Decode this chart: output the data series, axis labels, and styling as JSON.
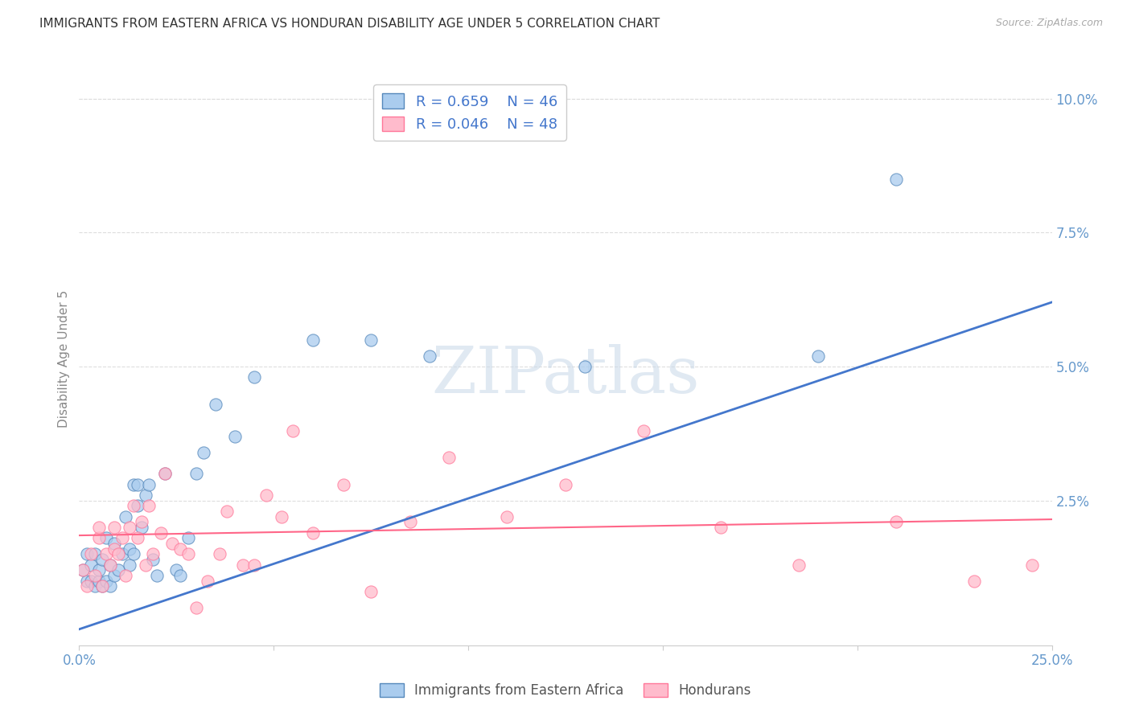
{
  "title": "IMMIGRANTS FROM EASTERN AFRICA VS HONDURAN DISABILITY AGE UNDER 5 CORRELATION CHART",
  "source": "Source: ZipAtlas.com",
  "ylabel": "Disability Age Under 5",
  "xlim": [
    0.0,
    0.25
  ],
  "ylim": [
    -0.002,
    0.105
  ],
  "plot_ylim": [
    0.0,
    0.1
  ],
  "yticks": [
    0.025,
    0.05,
    0.075,
    0.1
  ],
  "ytick_labels": [
    "2.5%",
    "5.0%",
    "7.5%",
    "10.0%"
  ],
  "xticks": [
    0.0,
    0.05,
    0.1,
    0.15,
    0.2,
    0.25
  ],
  "xtick_labels": [
    "0.0%",
    "",
    "",
    "",
    "",
    "25.0%"
  ],
  "blue_R": 0.659,
  "blue_N": 46,
  "pink_R": 0.046,
  "pink_N": 48,
  "blue_scatter_color_face": "#AACCEE",
  "blue_scatter_color_edge": "#5588BB",
  "pink_scatter_color_face": "#FFBBCC",
  "pink_scatter_color_edge": "#FF7799",
  "blue_line_color": "#4477CC",
  "pink_line_color": "#FF6688",
  "grid_color": "#DDDDDD",
  "axis_tick_color": "#6699CC",
  "background_color": "#FFFFFF",
  "blue_scatter_x": [
    0.001,
    0.002,
    0.002,
    0.003,
    0.003,
    0.004,
    0.004,
    0.005,
    0.005,
    0.006,
    0.006,
    0.007,
    0.007,
    0.008,
    0.008,
    0.009,
    0.009,
    0.01,
    0.011,
    0.012,
    0.013,
    0.013,
    0.014,
    0.014,
    0.015,
    0.015,
    0.016,
    0.017,
    0.018,
    0.019,
    0.02,
    0.022,
    0.025,
    0.026,
    0.028,
    0.03,
    0.032,
    0.035,
    0.04,
    0.045,
    0.06,
    0.075,
    0.09,
    0.13,
    0.19,
    0.21
  ],
  "blue_scatter_y": [
    0.012,
    0.01,
    0.015,
    0.01,
    0.013,
    0.009,
    0.015,
    0.01,
    0.012,
    0.009,
    0.014,
    0.01,
    0.018,
    0.009,
    0.013,
    0.011,
    0.017,
    0.012,
    0.015,
    0.022,
    0.013,
    0.016,
    0.015,
    0.028,
    0.024,
    0.028,
    0.02,
    0.026,
    0.028,
    0.014,
    0.011,
    0.03,
    0.012,
    0.011,
    0.018,
    0.03,
    0.034,
    0.043,
    0.037,
    0.048,
    0.055,
    0.055,
    0.052,
    0.05,
    0.052,
    0.085
  ],
  "pink_scatter_x": [
    0.001,
    0.002,
    0.003,
    0.004,
    0.005,
    0.005,
    0.006,
    0.007,
    0.008,
    0.009,
    0.009,
    0.01,
    0.011,
    0.012,
    0.013,
    0.014,
    0.015,
    0.016,
    0.017,
    0.018,
    0.019,
    0.021,
    0.022,
    0.024,
    0.026,
    0.028,
    0.03,
    0.033,
    0.036,
    0.038,
    0.042,
    0.045,
    0.048,
    0.052,
    0.055,
    0.06,
    0.068,
    0.075,
    0.085,
    0.095,
    0.11,
    0.125,
    0.145,
    0.165,
    0.185,
    0.21,
    0.23,
    0.245
  ],
  "pink_scatter_y": [
    0.012,
    0.009,
    0.015,
    0.011,
    0.018,
    0.02,
    0.009,
    0.015,
    0.013,
    0.02,
    0.016,
    0.015,
    0.018,
    0.011,
    0.02,
    0.024,
    0.018,
    0.021,
    0.013,
    0.024,
    0.015,
    0.019,
    0.03,
    0.017,
    0.016,
    0.015,
    0.005,
    0.01,
    0.015,
    0.023,
    0.013,
    0.013,
    0.026,
    0.022,
    0.038,
    0.019,
    0.028,
    0.008,
    0.021,
    0.033,
    0.022,
    0.028,
    0.038,
    0.02,
    0.013,
    0.021,
    0.01,
    0.013
  ],
  "blue_line_x0": 0.0,
  "blue_line_x1": 0.25,
  "blue_line_y0": 0.001,
  "blue_line_y1": 0.062,
  "pink_line_x0": 0.0,
  "pink_line_x1": 0.25,
  "pink_line_y0": 0.0185,
  "pink_line_y1": 0.0215,
  "watermark_text": "ZIPatlas",
  "legend_blue_label": "Immigrants from Eastern Africa",
  "legend_pink_label": "Hondurans"
}
